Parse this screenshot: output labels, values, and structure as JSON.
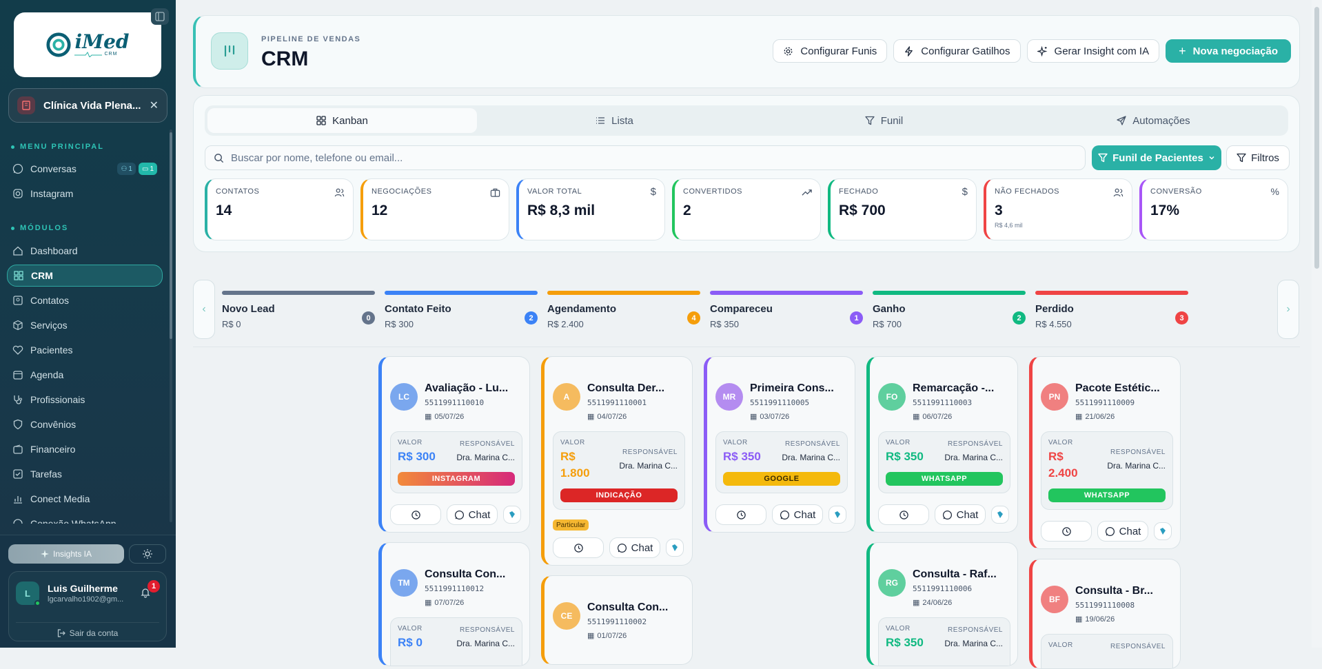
{
  "sidebar": {
    "logo": {
      "brand": "iMed",
      "sub": "CRM"
    },
    "clinic": {
      "name": "Clínica Vida Plena..."
    },
    "menu_principal": "MENU PRINCIPAL",
    "conversas": {
      "label": "Conversas",
      "badge1": "1",
      "badge2": "1"
    },
    "instagram": "Instagram",
    "modulos": "MÓDULOS",
    "items": [
      "Dashboard",
      "CRM",
      "Contatos",
      "Serviços",
      "Pacientes",
      "Agenda",
      "Profissionais",
      "Convênios",
      "Financeiro",
      "Tarefas",
      "Conect Media",
      "Conexão WhatsApp"
    ],
    "insights": "Insights IA",
    "user": {
      "initial": "L",
      "name": "Luis Guilherme",
      "email": "lgcarvalho1902@gm...",
      "notifications": "1"
    },
    "logout": "Sair da conta"
  },
  "header": {
    "pretitle": "PIPELINE DE VENDAS",
    "title": "CRM",
    "buttons": {
      "configurar_funis": "Configurar Funis",
      "configurar_gatilhos": "Configurar Gatilhos",
      "gerar_insight": "Gerar Insight com IA",
      "nova_negociacao": "Nova negociação"
    }
  },
  "tabs": [
    "Kanban",
    "Lista",
    "Funil",
    "Automações"
  ],
  "search": {
    "placeholder": "Buscar por nome, telefone ou email...",
    "value": ""
  },
  "funnel_select": "Funil de Pacientes",
  "filters": "Filtros",
  "stats": [
    {
      "label": "CONTATOS",
      "value": "14",
      "sub": "",
      "color": "#2ab1a6",
      "icon": "users-icon"
    },
    {
      "label": "NEGOCIAÇÕES",
      "value": "12",
      "sub": "",
      "color": "#f59e0b",
      "icon": "briefcase-icon"
    },
    {
      "label": "VALOR TOTAL",
      "value": "R$ 8,3 mil",
      "sub": "",
      "color": "#3b82f6",
      "icon": "dollar-icon"
    },
    {
      "label": "CONVERTIDOS",
      "value": "2",
      "sub": "",
      "color": "#22c55e",
      "icon": "trending-up-icon"
    },
    {
      "label": "FECHADO",
      "value": "R$ 700",
      "sub": "",
      "color": "#10b981",
      "icon": "dollar-icon"
    },
    {
      "label": "NÃO FECHADOS",
      "value": "3",
      "sub": "R$ 4,6 mil",
      "color": "#ef4444",
      "icon": "users-icon"
    },
    {
      "label": "CONVERSÃO",
      "value": "17%",
      "sub": "",
      "color": "#a855f7",
      "icon": "percent-icon"
    }
  ],
  "stages": [
    {
      "name": "Novo Lead",
      "value": "R$ 0",
      "count": "0",
      "color": "#64748b"
    },
    {
      "name": "Contato Feito",
      "value": "R$ 300",
      "count": "2",
      "color": "#3b82f6"
    },
    {
      "name": "Agendamento",
      "value": "R$ 2.400",
      "count": "4",
      "color": "#f59e0b"
    },
    {
      "name": "Compareceu",
      "value": "R$ 350",
      "count": "1",
      "color": "#8b5cf6"
    },
    {
      "name": "Ganho",
      "value": "R$ 700",
      "count": "2",
      "color": "#10b981"
    },
    {
      "name": "Perdido",
      "value": "R$ 4.550",
      "count": "3",
      "color": "#ef4444"
    }
  ],
  "card_labels": {
    "valor": "VALOR",
    "responsavel": "RESPONSÁVEL",
    "chat": "Chat"
  },
  "cards": [
    {
      "initials": "LC",
      "title": "Avaliação - Lu...",
      "phone": "5511991110010",
      "date": "05/07/26",
      "value": "R$ 300",
      "resp": "Dra. Marina C...",
      "tag": "INSTAGRAM"
    },
    {
      "initials": "TM",
      "title": "Consulta Con...",
      "phone": "5511991110012",
      "date": "07/07/26",
      "value": "R$ 0",
      "resp": "Dra. Marina C..."
    },
    {
      "initials": "A",
      "title": "Consulta Der...",
      "phone": "5511991110001",
      "date": "04/07/26",
      "value": "R$ 1.800",
      "value_l1": "R$",
      "value_l2": "1.800",
      "resp": "Dra. Marina C...",
      "tag": "INDICAÇÃO",
      "badge": "Particular"
    },
    {
      "initials": "CE",
      "title": "Consulta Con...",
      "phone": "5511991110002",
      "date": "01/07/26"
    },
    {
      "initials": "MR",
      "title": "Primeira Cons...",
      "phone": "5511991110005",
      "date": "03/07/26",
      "value": "R$ 350",
      "resp": "Dra. Marina C...",
      "tag": "GOOGLE"
    },
    {
      "initials": "FO",
      "title": "Remarcação -...",
      "phone": "5511991110003",
      "date": "06/07/26",
      "value": "R$ 350",
      "resp": "Dra. Marina C...",
      "tag": "WHATSAPP"
    },
    {
      "initials": "RG",
      "title": "Consulta - Raf...",
      "phone": "5511991110006",
      "date": "24/06/26",
      "value": "R$ 350",
      "resp": "Dra. Marina C..."
    },
    {
      "initials": "PN",
      "title": "Pacote Estétic...",
      "phone": "5511991110009",
      "date": "21/06/26",
      "value": "R$ 2.400",
      "value_l1": "R$",
      "value_l2": "2.400",
      "resp": "Dra. Marina C...",
      "tag": "WHATSAPP"
    },
    {
      "initials": "BF",
      "title": "Consulta - Br...",
      "phone": "5511991110008",
      "date": "19/06/26"
    }
  ]
}
